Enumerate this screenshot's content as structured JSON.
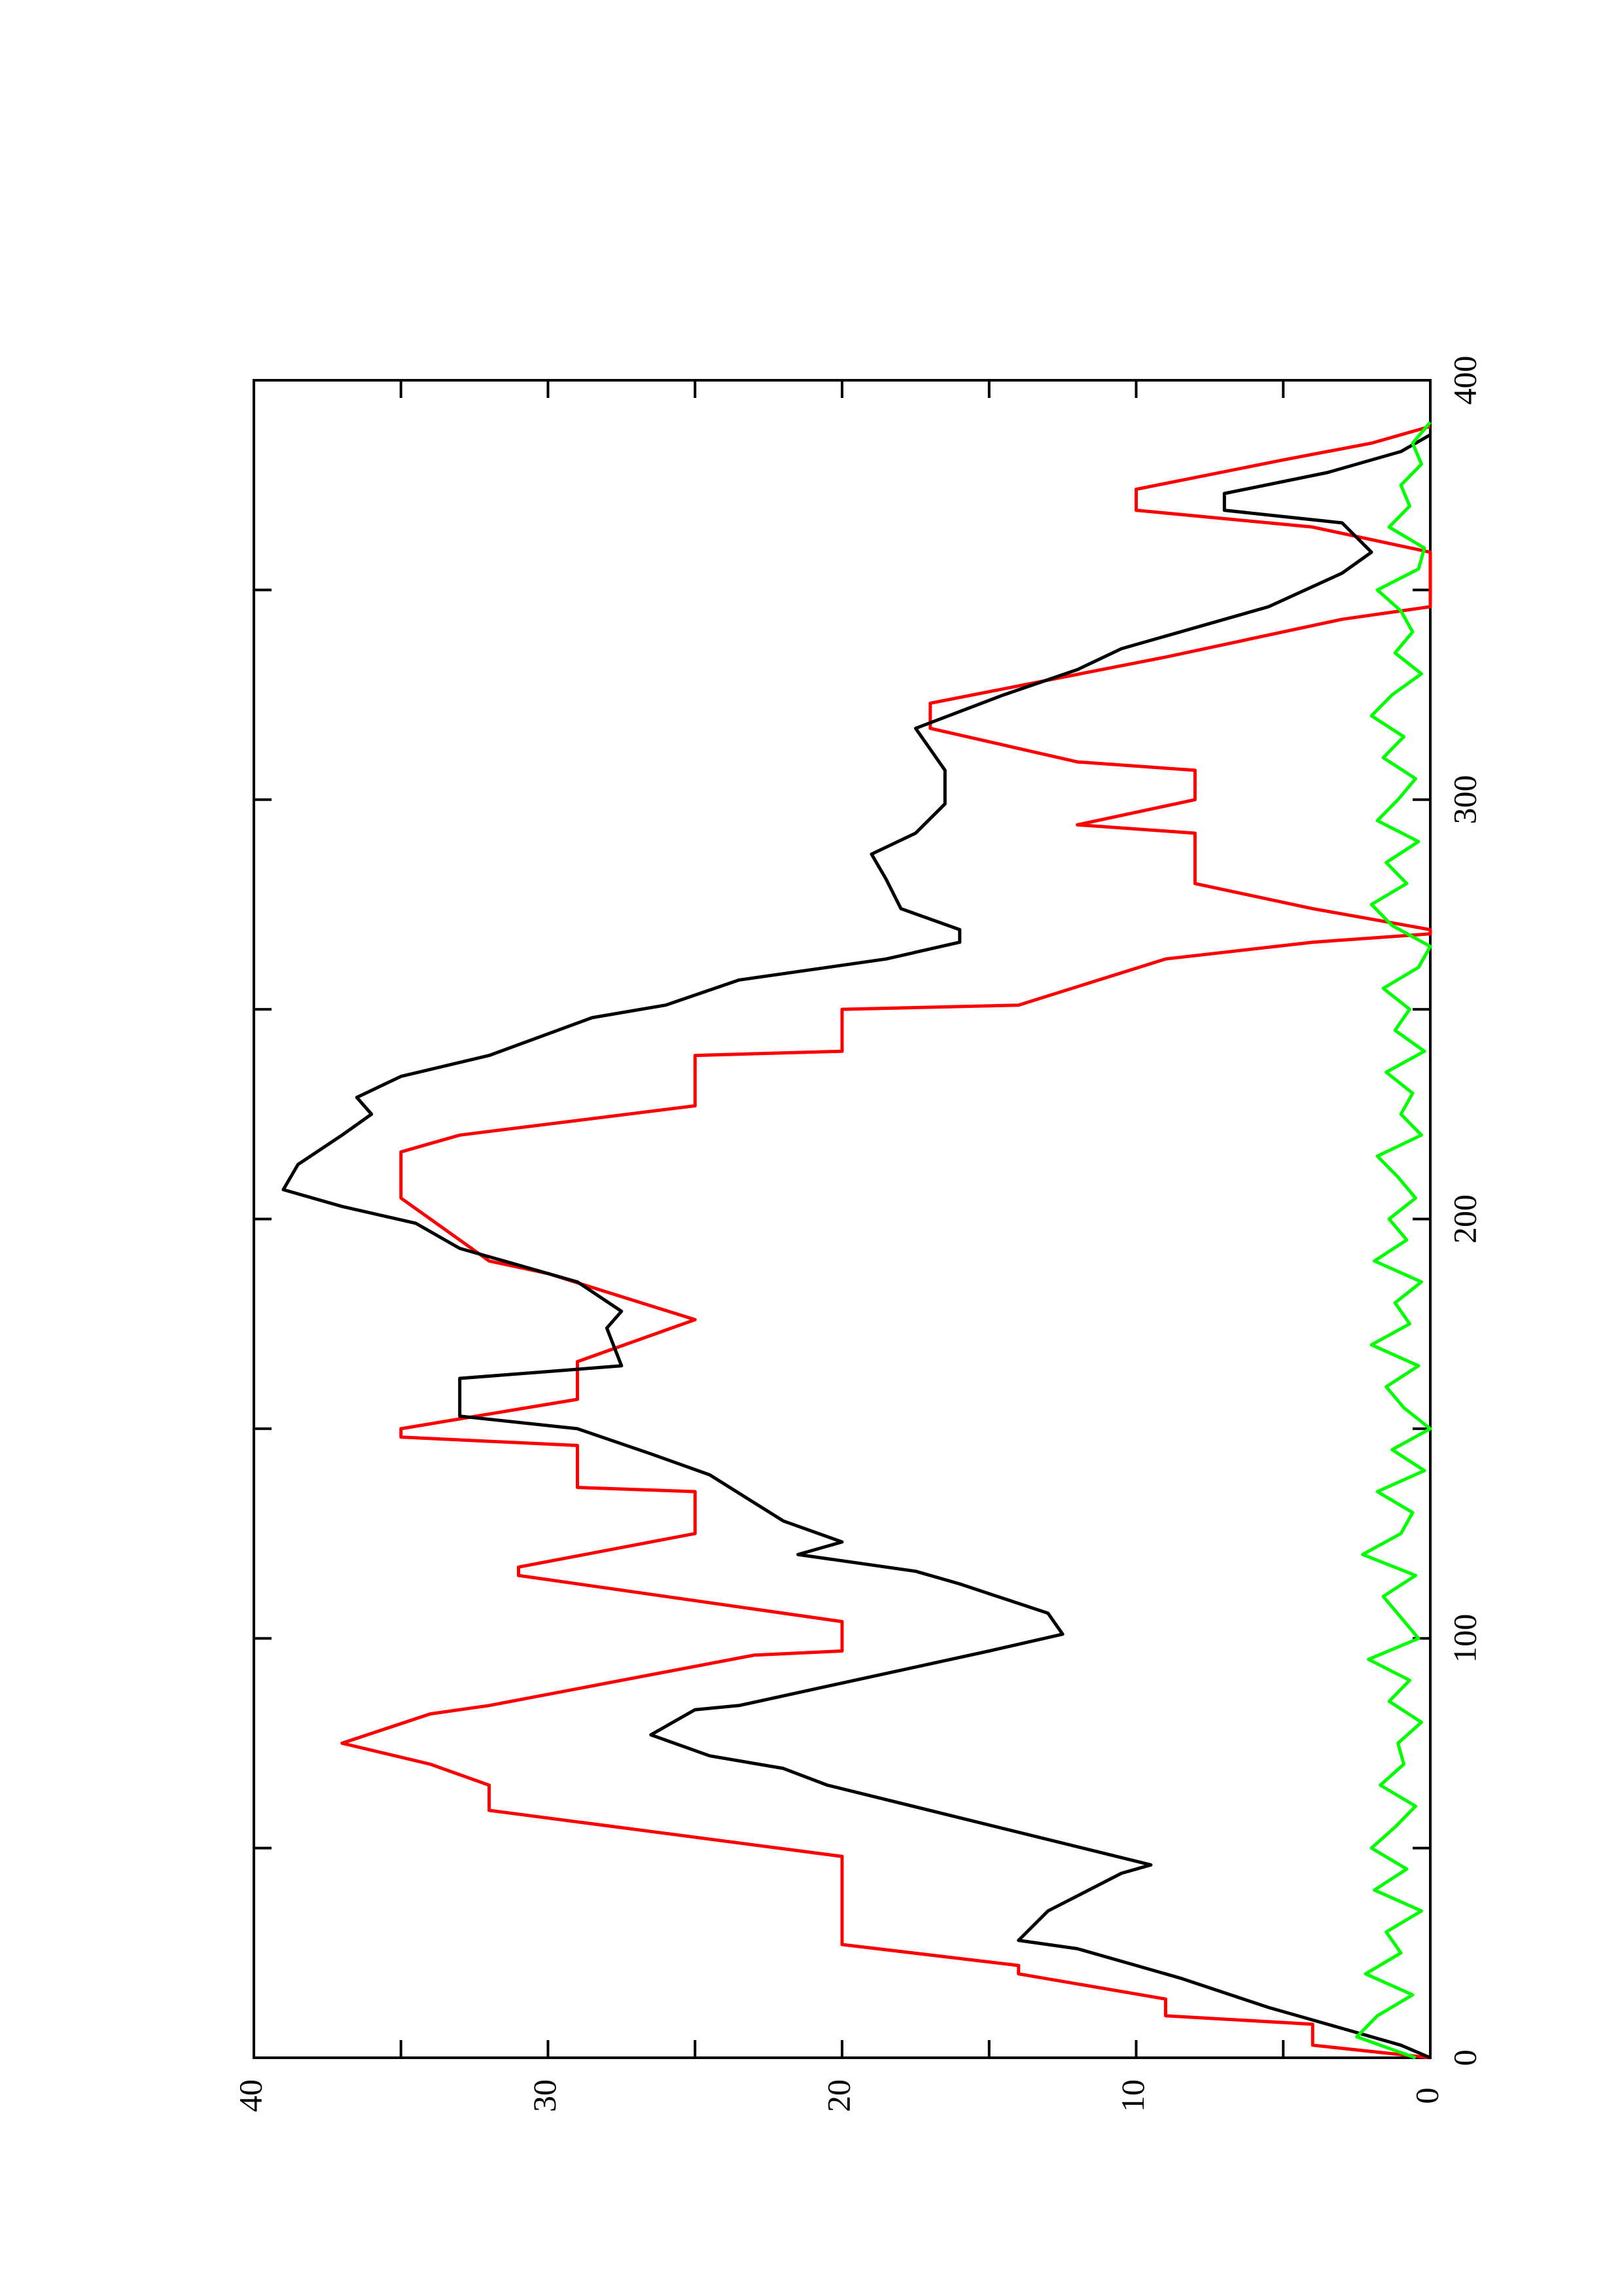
{
  "chart_data": {
    "type": "line",
    "xlim": [
      0,
      400
    ],
    "xticks": [
      0,
      100,
      200,
      300,
      400
    ],
    "xminorticks": [
      50,
      150,
      250,
      350
    ],
    "ylim": [
      0,
      40
    ],
    "yticks": [
      0,
      10,
      20,
      30,
      40
    ],
    "yminorticks": [
      5,
      15,
      25,
      35
    ],
    "series": [
      {
        "color": "#ff0000",
        "x": [
          0,
          3,
          8,
          10,
          14,
          20,
          22,
          27,
          48,
          59,
          65,
          70,
          75,
          82,
          84,
          96,
          97,
          104,
          115,
          117,
          125,
          135,
          136,
          146,
          148,
          150,
          157,
          166,
          176,
          187,
          190,
          205,
          216,
          220,
          227,
          239,
          240,
          250,
          251,
          262,
          266,
          268,
          269,
          274,
          280,
          292,
          294,
          300,
          307,
          309,
          317,
          323,
          334,
          343,
          346,
          359,
          365,
          369,
          374,
          381,
          385,
          389
        ],
        "values": [
          0,
          4,
          4,
          9,
          9,
          14,
          14,
          20,
          20,
          32,
          32,
          34,
          37,
          34,
          32,
          23,
          20,
          20,
          31,
          31,
          25,
          25,
          29,
          29,
          35,
          35,
          29,
          29,
          25,
          30,
          32,
          35,
          35,
          33,
          25,
          25,
          20,
          20,
          14,
          9,
          4,
          0,
          0,
          4,
          8,
          8,
          12,
          8,
          8,
          12,
          17,
          17,
          9,
          3,
          0,
          0,
          4,
          10,
          10,
          5,
          2,
          0
        ]
      },
      {
        "color": "#000000",
        "x": [
          0,
          3,
          7,
          12,
          19,
          22,
          26,
          28,
          35,
          44,
          46,
          65,
          69,
          72,
          77,
          83,
          84,
          97,
          101,
          106,
          113,
          116,
          120,
          123,
          128,
          139,
          144,
          150,
          153,
          162,
          165,
          174,
          178,
          185,
          193,
          199,
          203,
          207,
          213,
          220,
          225,
          229,
          234,
          239,
          248,
          251,
          257,
          262,
          266,
          269,
          274,
          281,
          287,
          292,
          299,
          307,
          317,
          325,
          331,
          336,
          346,
          354,
          359,
          366,
          369,
          373,
          378,
          383,
          387
        ],
        "values": [
          0,
          1,
          3,
          5.5,
          8.5,
          10,
          12,
          14,
          13,
          10.5,
          9.5,
          20.5,
          22,
          24.5,
          26.5,
          25,
          23.5,
          15,
          12.5,
          13,
          16,
          17.5,
          21.5,
          20,
          22,
          24.5,
          26.5,
          29,
          33,
          33,
          27.5,
          28,
          27.5,
          29,
          33,
          34.5,
          37,
          39,
          38.5,
          37,
          36,
          36.5,
          35,
          32,
          28.5,
          26,
          23.5,
          18.5,
          16,
          16,
          18,
          18.5,
          19,
          17.5,
          16.5,
          16.5,
          17.5,
          14.5,
          12,
          10.5,
          5.5,
          3,
          2,
          3,
          7,
          7,
          3.5,
          1,
          0
        ]
      },
      {
        "color": "#00ff00",
        "x": [
          0,
          5,
          10,
          15,
          20,
          25,
          30,
          35,
          40,
          45,
          50,
          55,
          60,
          65,
          70,
          75,
          80,
          85,
          90,
          95,
          100,
          105,
          110,
          115,
          120,
          125,
          130,
          135,
          140,
          145,
          150,
          155,
          160,
          165,
          170,
          175,
          180,
          185,
          190,
          195,
          200,
          205,
          210,
          215,
          220,
          225,
          230,
          235,
          240,
          245,
          250,
          255,
          260,
          265,
          270,
          275,
          280,
          285,
          290,
          295,
          300,
          305,
          310,
          315,
          320,
          325,
          330,
          335,
          340,
          345,
          350,
          355,
          360,
          365,
          370,
          375,
          380,
          385,
          390
        ],
        "values": [
          0.5,
          2.5,
          1.8,
          0.6,
          2.2,
          1.0,
          1.5,
          0.3,
          1.9,
          0.8,
          2.0,
          1.2,
          0.5,
          1.7,
          0.9,
          1.1,
          0.3,
          1.4,
          0.7,
          2.1,
          0.4,
          1.0,
          1.6,
          0.5,
          2.3,
          1.0,
          0.6,
          1.8,
          0.2,
          1.3,
          0.0,
          0.9,
          1.5,
          0.4,
          2.0,
          0.7,
          1.2,
          0.3,
          1.9,
          0.8,
          1.4,
          0.5,
          1.1,
          1.8,
          0.3,
          1.0,
          0.6,
          1.5,
          0.2,
          1.2,
          0.7,
          1.6,
          0.4,
          0.0,
          1.3,
          2.0,
          0.8,
          1.5,
          0.4,
          1.8,
          1.1,
          0.5,
          1.6,
          0.9,
          2.0,
          1.3,
          0.3,
          1.2,
          0.6,
          1.0,
          1.8,
          0.4,
          0.2,
          1.4,
          0.7,
          1.0,
          0.3,
          0.6,
          0.0
        ]
      }
    ]
  }
}
